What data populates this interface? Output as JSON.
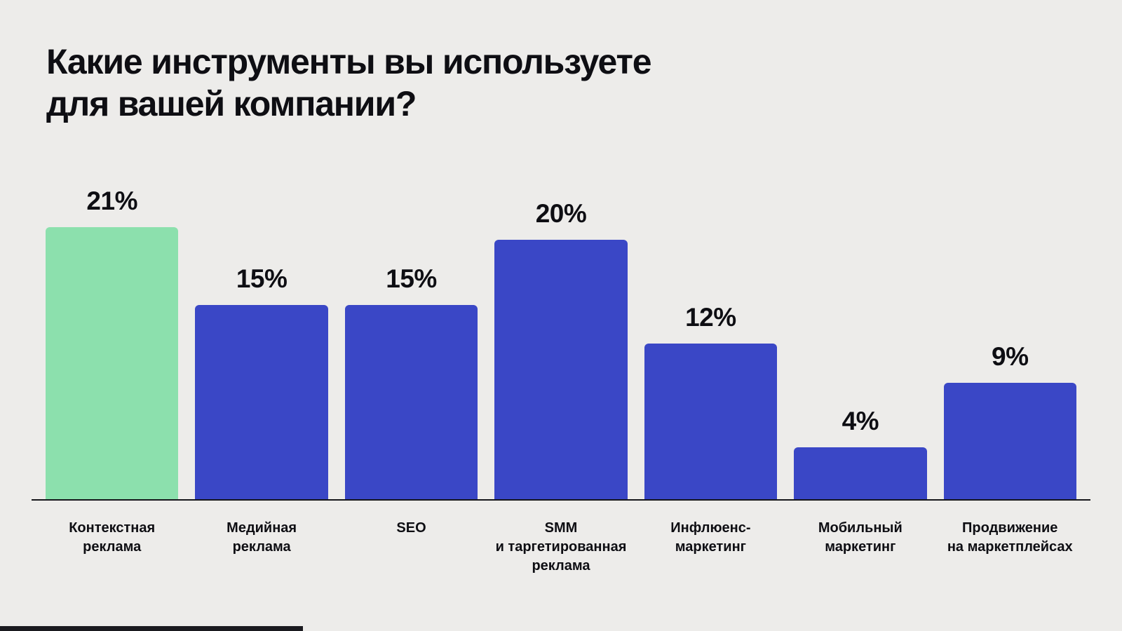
{
  "background_color": "#EDECEA",
  "text_color": "#0E0E13",
  "chart_data": {
    "type": "bar",
    "title": "Какие инструменты вы используете для вашей компании?",
    "title_display": "Какие инструменты вы используете\nдля вашей компании?",
    "categories": [
      "Контекстная реклама",
      "Медийная реклама",
      "SEO",
      "SMM и таргетированная реклама",
      "Инфлюенс-маркетинг",
      "Мобильный маркетинг",
      "Продвижение на маркетплейсах"
    ],
    "categories_display": [
      "Контекстная\nреклама",
      "Медийная\nреклама",
      "SEO",
      "SMM\nи таргетированная\nреклама",
      "Инфлюенс-\nмаркетинг",
      "Мобильный\nмаркетинг",
      "Продвижение\nна маркетплейсах"
    ],
    "values": [
      21,
      15,
      15,
      20,
      12,
      4,
      9
    ],
    "value_labels": [
      "21%",
      "15%",
      "15%",
      "20%",
      "12%",
      "4%",
      "9%"
    ],
    "unit": "%",
    "ylim": [
      0,
      21
    ],
    "bar_colors": [
      "#8CE0AD",
      "#3A47C6",
      "#3A47C6",
      "#3A47C6",
      "#3A47C6",
      "#3A47C6",
      "#3A47C6"
    ],
    "highlight_index": 0,
    "highlight_color": "#8CE0AD",
    "default_color": "#3A47C6",
    "gridlines": false,
    "legend": "none",
    "axis_line_color": "#16161B"
  }
}
